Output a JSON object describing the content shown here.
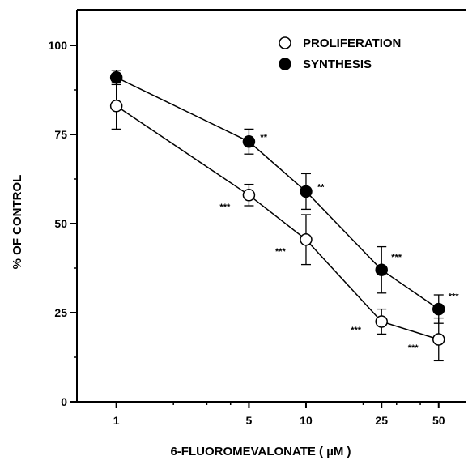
{
  "chart_data": {
    "type": "line",
    "xlabel": "6-FLUOROMEVALONATE ( µM )",
    "ylabel": "% OF CONTROL",
    "x_scale": "log",
    "categories": [
      "1",
      "5",
      "10",
      "25",
      "50"
    ],
    "x": [
      1,
      5,
      10,
      25,
      50
    ],
    "y_ticks": [
      "0",
      "25",
      "50",
      "75",
      "100"
    ],
    "ylim": [
      0,
      110
    ],
    "grid": false,
    "legend_position": "top-right",
    "series": [
      {
        "name": "PROLIFERATION",
        "marker": "open-circle",
        "color": "#000000",
        "values": [
          83,
          58,
          45.5,
          22.5,
          17.5
        ],
        "errors": [
          6.5,
          3,
          7,
          3.5,
          6
        ],
        "significance": [
          "",
          "***",
          "***",
          "***",
          "***"
        ]
      },
      {
        "name": "SYNTHESIS",
        "marker": "filled-circle",
        "color": "#000000",
        "values": [
          91,
          73,
          59,
          37,
          26
        ],
        "errors": [
          2,
          3.5,
          5,
          6.5,
          4
        ],
        "significance": [
          "",
          "**",
          "**",
          "***",
          "***"
        ]
      }
    ]
  }
}
